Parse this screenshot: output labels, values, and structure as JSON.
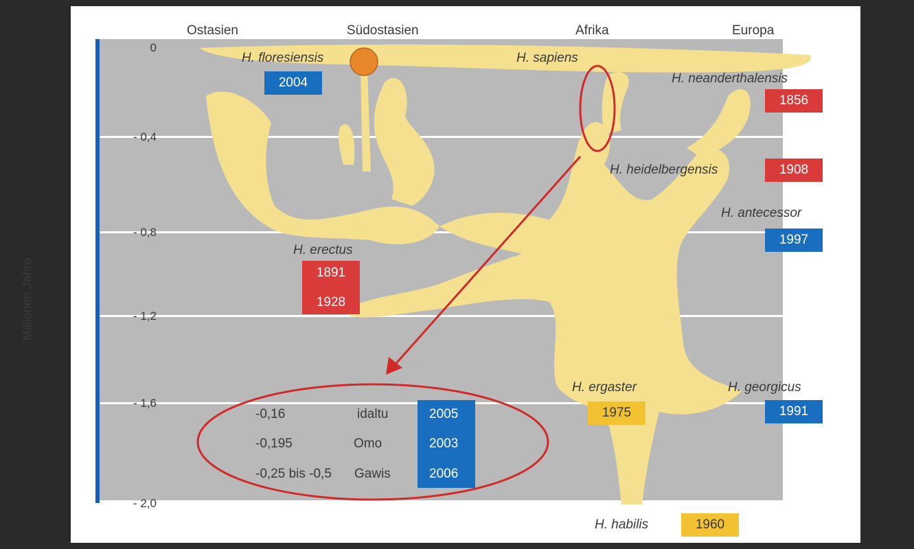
{
  "colors": {
    "background": "#2a2a2a",
    "plot": "#b9b9b9",
    "blob": "#f4e08f",
    "axis": "#1a5fb4",
    "blue": "#1a6ec0",
    "red": "#d93a3a",
    "yellow": "#f2c233",
    "highlight": "#d02a2a"
  },
  "regions": [
    "Ostasien",
    "Südostasien",
    "Afrika",
    "Europa"
  ],
  "y_axis": {
    "label": "Millionen Jahre",
    "ticks": [
      "0",
      "- 0,4",
      "- 0,8",
      "- 1,2",
      "- 1,6",
      "- 2,0"
    ]
  },
  "species": {
    "floresiensis": {
      "name": "H. floresiensis",
      "years": [
        "2004"
      ]
    },
    "sapiens": {
      "name": "H. sapiens"
    },
    "neanderthalensis": {
      "name": "H. neanderthalensis",
      "years": [
        "1856"
      ]
    },
    "heidelbergensis": {
      "name": "H. heidelbergensis",
      "years": [
        "1908"
      ]
    },
    "antecessor": {
      "name": "H. antecessor",
      "years": [
        "1997"
      ]
    },
    "erectus": {
      "name": "H. erectus",
      "years": [
        "1891",
        "1928"
      ]
    },
    "ergaster": {
      "name": "H. ergaster",
      "years": [
        "1975"
      ]
    },
    "georgicus": {
      "name": "H. georgicus",
      "years": [
        "1991"
      ]
    },
    "habilis": {
      "name": "H. habilis",
      "years": [
        "1960"
      ]
    }
  },
  "inset": [
    {
      "age": "-0,16",
      "site": "idaltu",
      "year": "2005"
    },
    {
      "age": "-0,195",
      "site": "Omo",
      "year": "2003"
    },
    {
      "age": "-0,25 bis -0,5",
      "site": "Gawis",
      "year": "2006"
    }
  ]
}
